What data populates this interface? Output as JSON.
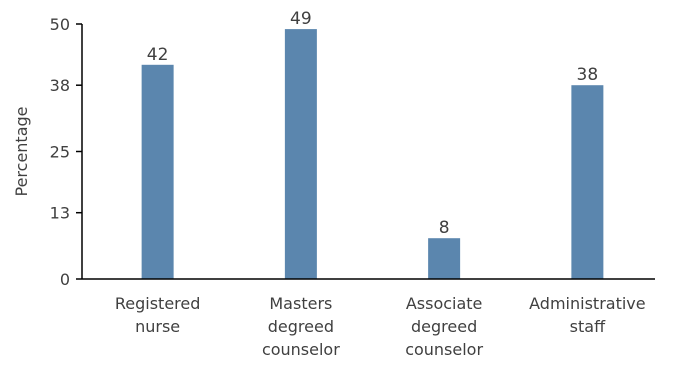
{
  "chart_data": {
    "type": "bar",
    "categories": [
      [
        "Registered",
        "nurse"
      ],
      [
        "Masters",
        "degreed",
        "counselor"
      ],
      [
        "Associate",
        "degreed",
        "counselor"
      ],
      [
        "Administrative",
        "staff"
      ]
    ],
    "values": [
      42,
      49,
      8,
      38
    ],
    "value_labels": [
      "42",
      "49",
      "8",
      "38"
    ],
    "ylabel": "Percentage",
    "yticks": [
      0,
      13,
      25,
      38,
      50
    ],
    "ylim": [
      0,
      50
    ],
    "grid": false,
    "legend": "none",
    "bar_color": "#5b86ae",
    "axis_color": "#000000"
  }
}
